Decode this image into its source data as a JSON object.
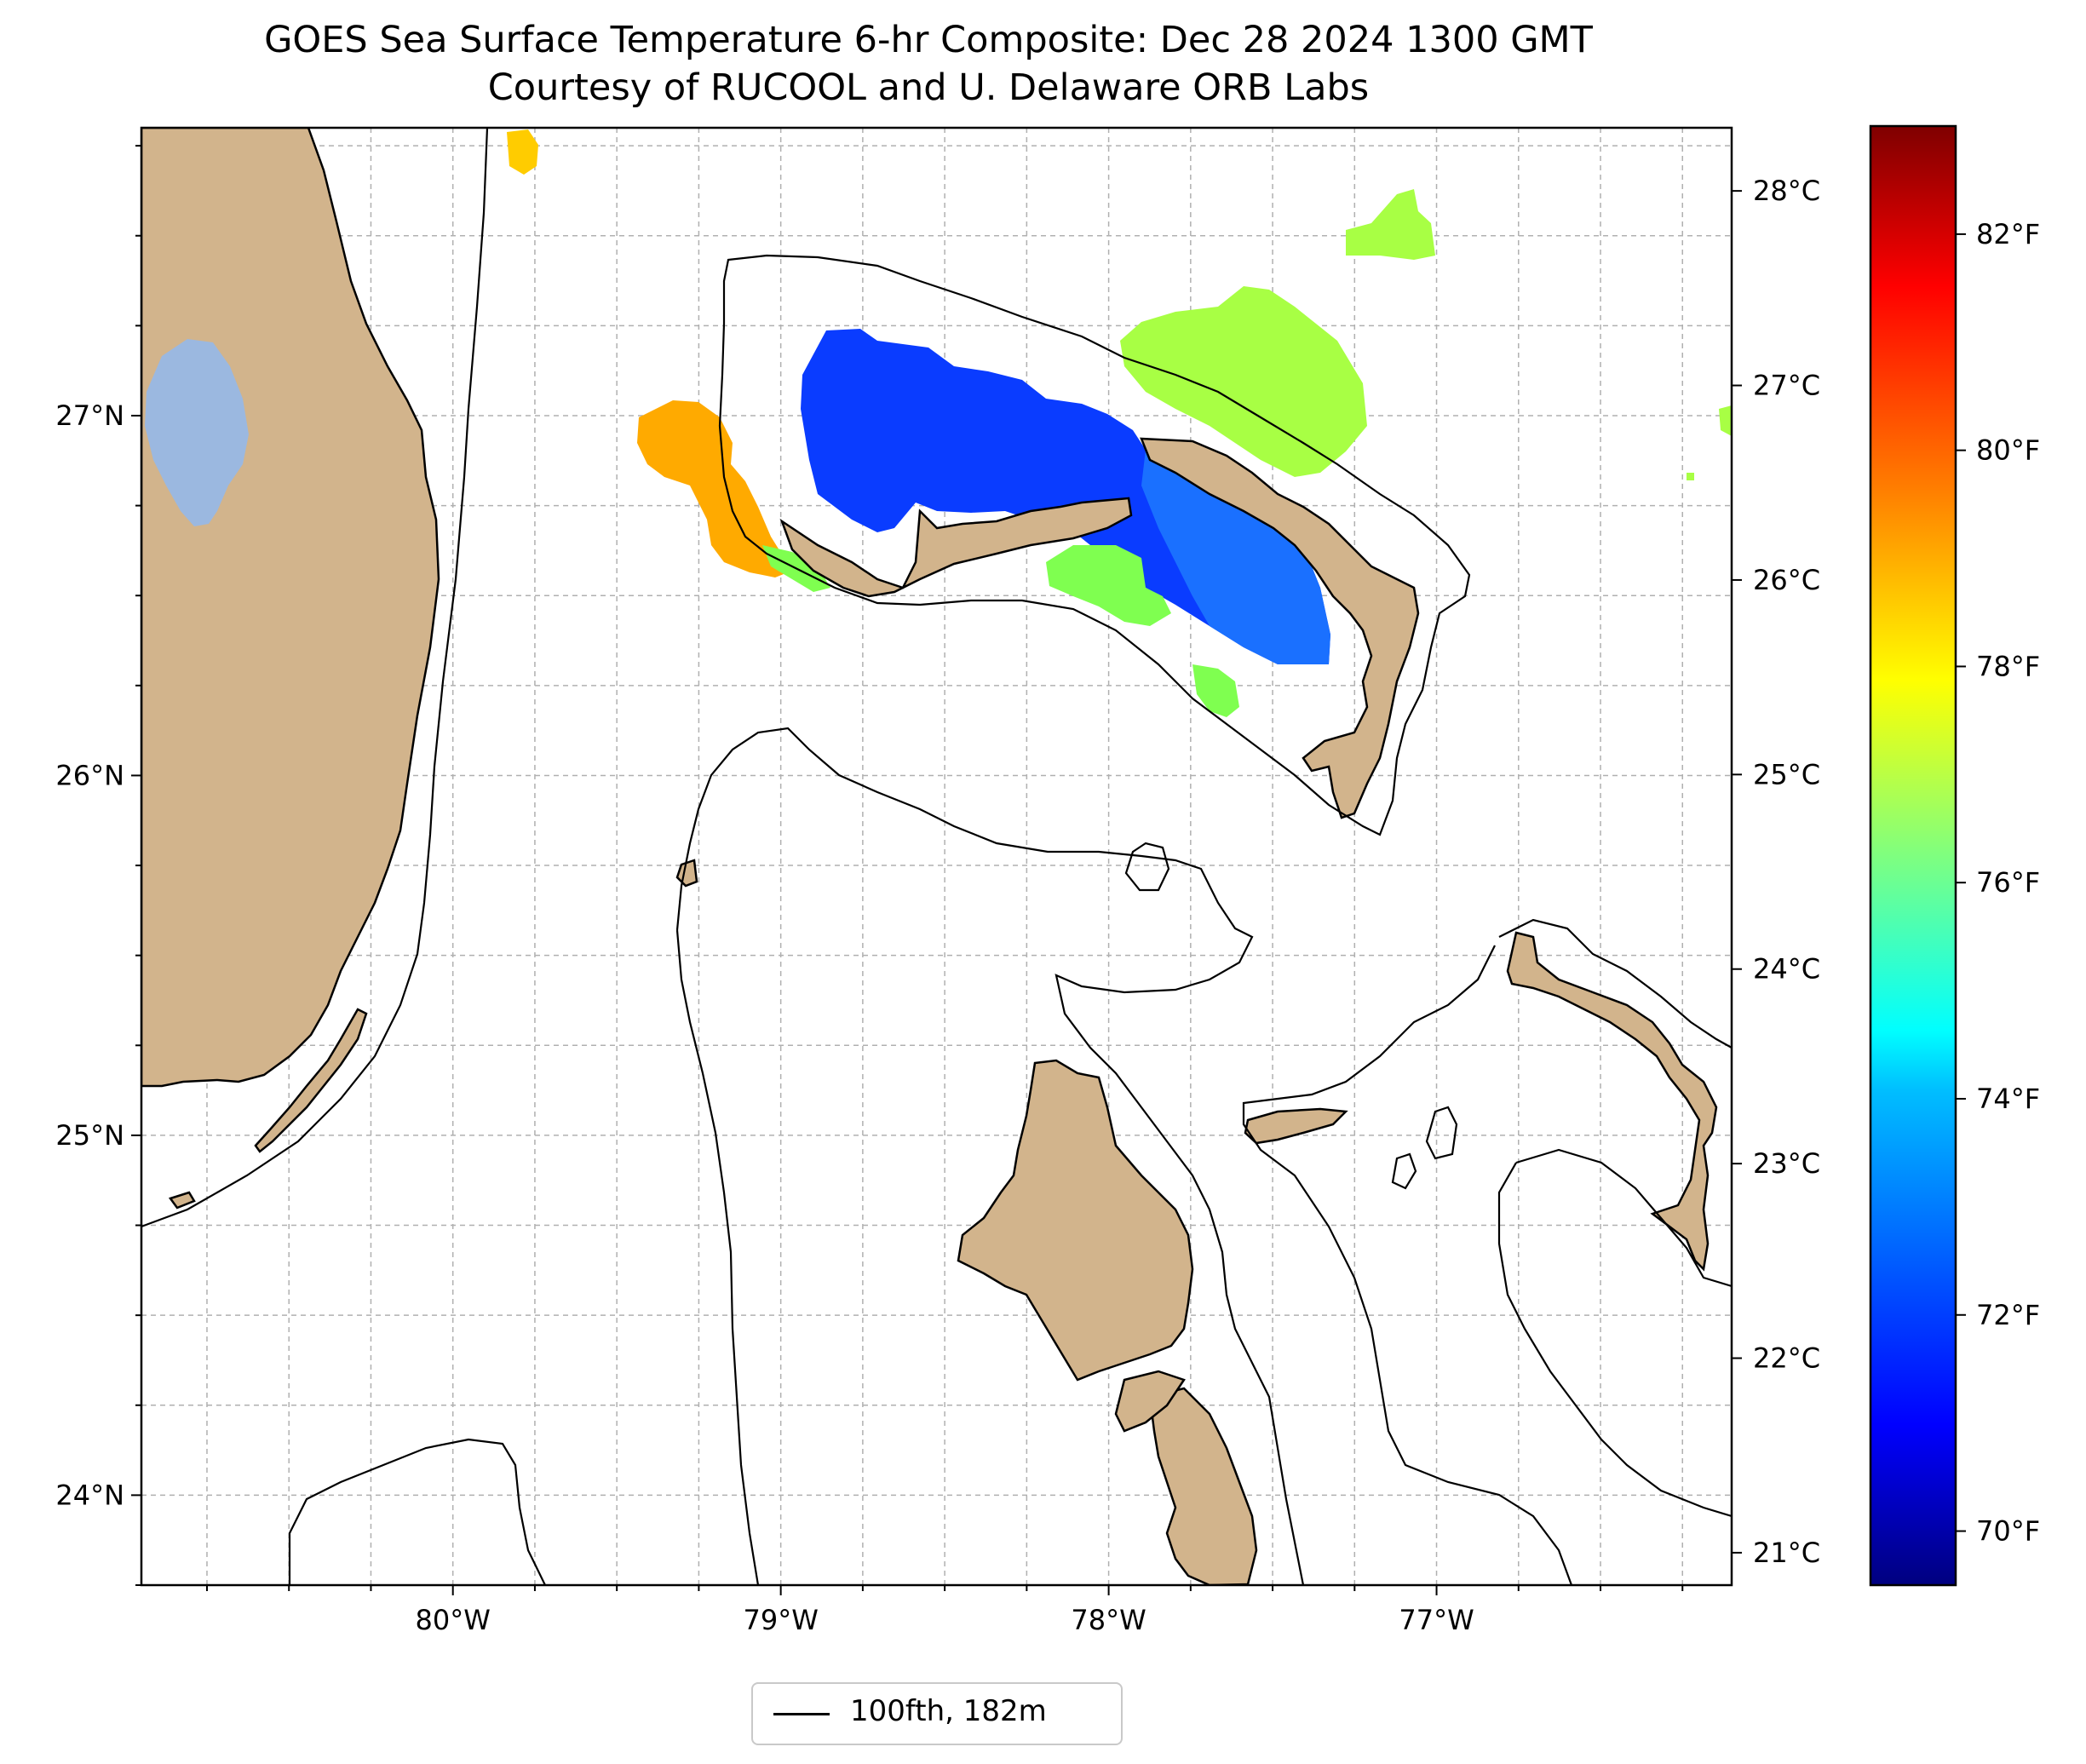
{
  "title": {
    "line1": "GOES Sea Surface Temperature 6-hr Composite: Dec 28 2024 1300 GMT",
    "line2": "Courtesy of RUCOOL and U. Delaware ORB Labs"
  },
  "axes": {
    "lat_labels": [
      "27°N",
      "26°N",
      "25°N",
      "24°N"
    ],
    "lon_labels": [
      "80°W",
      "79°W",
      "78°W",
      "77°W"
    ],
    "lon_range": [
      -80.95,
      -76.1
    ],
    "lat_range": [
      23.75,
      27.8
    ]
  },
  "colorbar": {
    "celsius_labels": [
      "28°C",
      "27°C",
      "26°C",
      "25°C",
      "24°C",
      "23°C",
      "22°C",
      "21°C"
    ],
    "celsius_values": [
      28,
      27,
      26,
      25,
      24,
      23,
      22,
      21
    ],
    "fahrenheit_labels": [
      "82°F",
      "80°F",
      "78°F",
      "76°F",
      "74°F",
      "72°F",
      "70°F"
    ],
    "fahrenheit_values": [
      82,
      80,
      78,
      76,
      74,
      72,
      70
    ],
    "range_f": [
      69.5,
      83.0
    ],
    "colormap": "jet",
    "colors": [
      "#00007f",
      "#0000ff",
      "#007fff",
      "#00ffff",
      "#7fff7f",
      "#ffff00",
      "#ff7f00",
      "#ff0000",
      "#7f0000"
    ]
  },
  "legend": {
    "label": "100fth, 182m"
  },
  "colors": {
    "land": "#d2b48c",
    "lake": "#9bb8e0",
    "contour": "#000000",
    "grid": "#b0b0b0",
    "cold_sst": "#0a3cff",
    "cool_sst": "#1a70ff",
    "warm_sst": "#ffaa00",
    "mid_sst": "#7fff50",
    "green_sst": "#a8ff44"
  }
}
